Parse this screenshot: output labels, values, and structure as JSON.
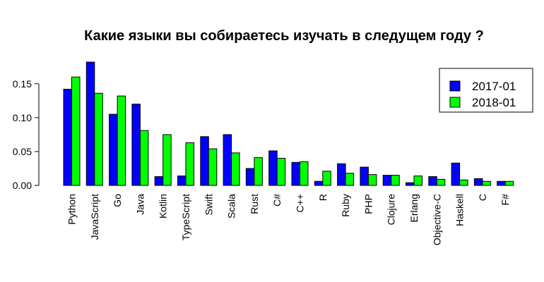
{
  "chart_data": {
    "type": "bar",
    "title": "Какие языки вы собираетесь изучать в следущем году ?",
    "xlabel": "",
    "ylabel": "",
    "categories": [
      "Python",
      "JavaScript",
      "Go",
      "Java",
      "Kotlin",
      "TypeScript",
      "Swift",
      "Scala",
      "Rust",
      "C#",
      "C++",
      "R",
      "Ruby",
      "PHP",
      "Clojure",
      "Erlang",
      "Objective-C",
      "Haskell",
      "C",
      "F#"
    ],
    "series": [
      {
        "name": "2017-01",
        "color": "#0000ff",
        "values": [
          0.142,
          0.182,
          0.105,
          0.12,
          0.013,
          0.014,
          0.072,
          0.075,
          0.025,
          0.051,
          0.034,
          0.006,
          0.032,
          0.027,
          0.015,
          0.004,
          0.013,
          0.033,
          0.01,
          0.006
        ]
      },
      {
        "name": "2018-01",
        "color": "#00ff00",
        "values": [
          0.16,
          0.136,
          0.132,
          0.081,
          0.075,
          0.063,
          0.054,
          0.048,
          0.041,
          0.04,
          0.035,
          0.021,
          0.018,
          0.016,
          0.015,
          0.014,
          0.009,
          0.008,
          0.006,
          0.006
        ]
      }
    ],
    "ylim": [
      0,
      0.18
    ],
    "yticks": [
      "0.00",
      "0.05",
      "0.10",
      "0.15"
    ],
    "ytick_values": [
      0,
      0.05,
      0.1,
      0.15
    ],
    "grid": false,
    "legend_position": "top-right"
  }
}
